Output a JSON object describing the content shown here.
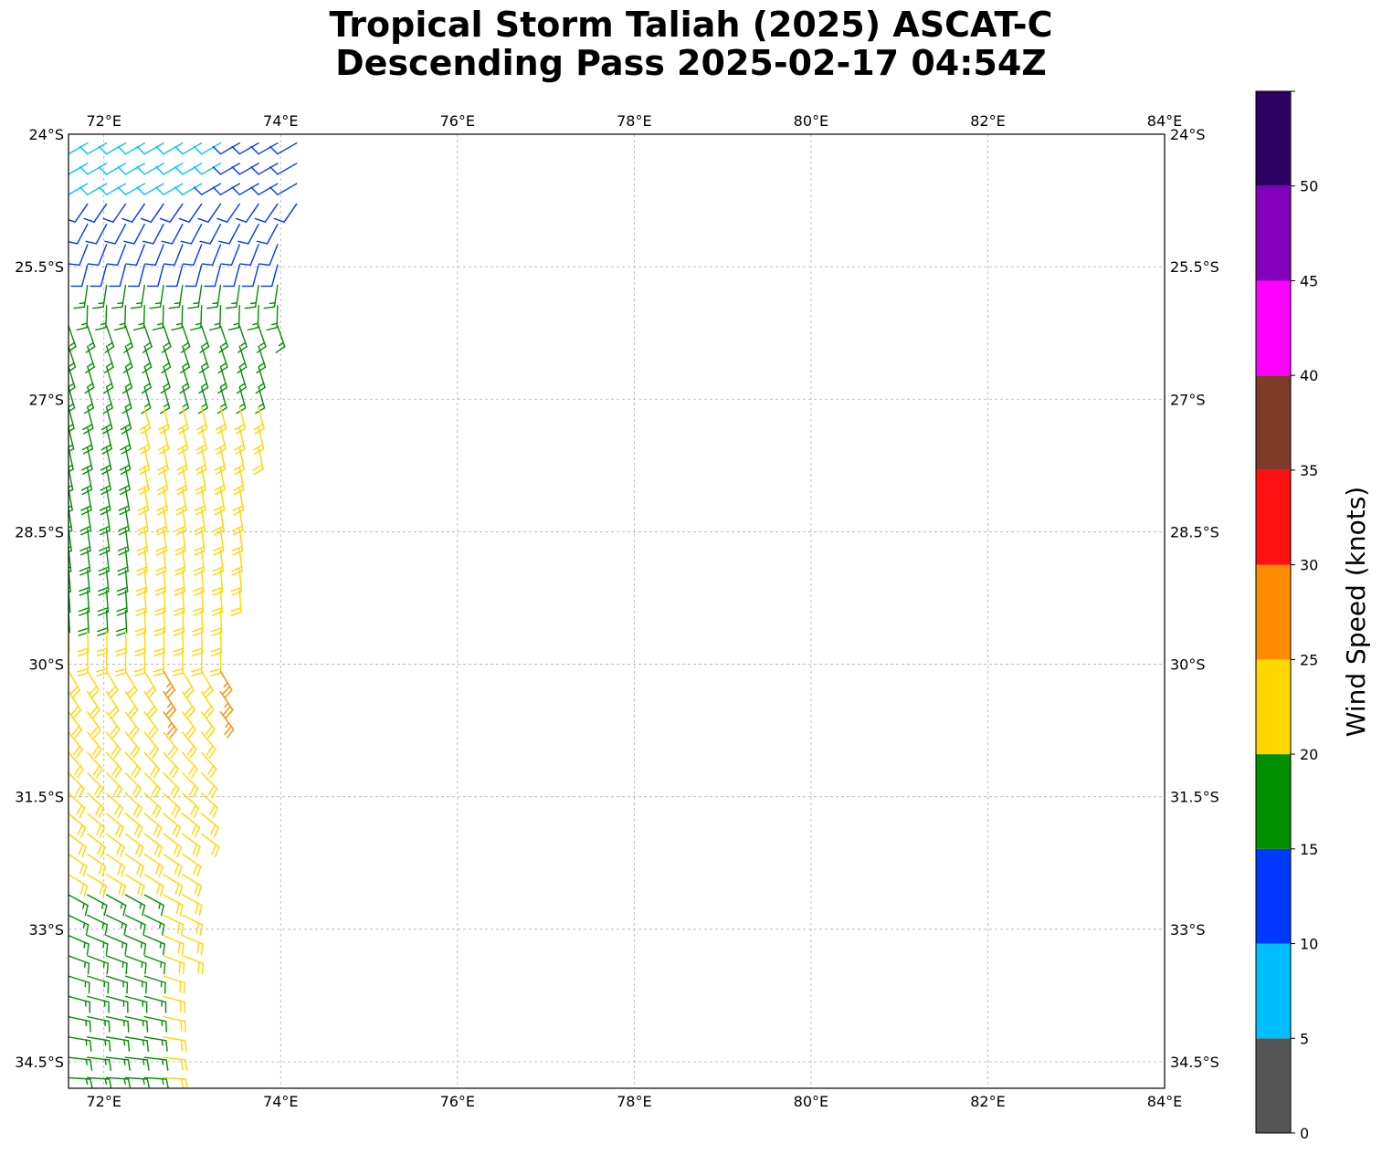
{
  "title": {
    "line1": "Tropical Storm Taliah (2025) ASCAT-C",
    "line2": "Descending Pass 2025-02-17 04:54Z"
  },
  "map": {
    "lon_range": [
      71.6,
      84.0
    ],
    "lat_range": [
      -34.8,
      -24.0
    ],
    "lon_ticks": [
      {
        "value": 72,
        "label": "72°E"
      },
      {
        "value": 74,
        "label": "74°E"
      },
      {
        "value": 76,
        "label": "76°E"
      },
      {
        "value": 78,
        "label": "78°E"
      },
      {
        "value": 80,
        "label": "80°E"
      },
      {
        "value": 82,
        "label": "82°E"
      },
      {
        "value": 84,
        "label": "84°E"
      }
    ],
    "lat_ticks": [
      {
        "value": -24.0,
        "label": "24°S"
      },
      {
        "value": -25.5,
        "label": "25.5°S"
      },
      {
        "value": -27.0,
        "label": "27°S"
      },
      {
        "value": -28.5,
        "label": "28.5°S"
      },
      {
        "value": -30.0,
        "label": "30°S"
      },
      {
        "value": -31.5,
        "label": "31.5°S"
      },
      {
        "value": -33.0,
        "label": "33°S"
      },
      {
        "value": -34.5,
        "label": "34.5°S"
      }
    ],
    "gridlines": true,
    "swath": {
      "lat_top": -24.1,
      "lat_bottom": -34.75,
      "west_edge_lon": 71.6,
      "east_edge_lon_top": 74.3,
      "east_edge_lon_bottom": 72.7
    }
  },
  "colorbar": {
    "label": "Wind Speed (knots)",
    "bins": [
      {
        "min": 0,
        "max": 5,
        "color": "#555555"
      },
      {
        "min": 5,
        "max": 10,
        "color": "#00bfff"
      },
      {
        "min": 10,
        "max": 15,
        "color": "#0038ff"
      },
      {
        "min": 15,
        "max": 20,
        "color": "#008f00"
      },
      {
        "min": 20,
        "max": 25,
        "color": "#ffd700"
      },
      {
        "min": 25,
        "max": 30,
        "color": "#ff8c00"
      },
      {
        "min": 30,
        "max": 35,
        "color": "#ff1010"
      },
      {
        "min": 35,
        "max": 40,
        "color": "#7f3b2a"
      },
      {
        "min": 40,
        "max": 45,
        "color": "#ff00ff"
      },
      {
        "min": 45,
        "max": 50,
        "color": "#8300bd"
      },
      {
        "min": 50,
        "max": 55,
        "color": "#2d0063"
      }
    ],
    "ticks": [
      "0",
      "5",
      "10",
      "15",
      "20",
      "25",
      "30",
      "35",
      "40",
      "45",
      "50"
    ]
  }
}
